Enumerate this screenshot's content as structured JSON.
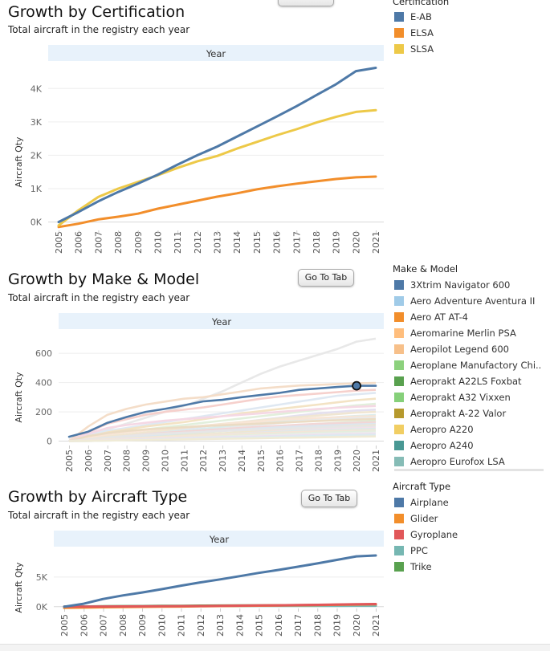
{
  "charts": [
    {
      "id": "cert",
      "title": "Growth by Certification",
      "subtitle": "Total aircraft in the registry each year",
      "button_label": "Go To Tab",
      "header": "Year",
      "ylabel": "Aircraft Qty",
      "legend_title": "Certification",
      "legend": [
        {
          "label": "E-AB",
          "color": "#4e79a7"
        },
        {
          "label": "ELSA",
          "color": "#f28e2b"
        },
        {
          "label": "SLSA",
          "color": "#edc948"
        }
      ],
      "chart_data": {
        "type": "line",
        "title": "Growth by Certification",
        "xlabel": "Year",
        "ylabel": "Aircraft Qty",
        "ylim": [
          -250,
          4800
        ],
        "yticks": [
          0,
          1000,
          2000,
          3000,
          4000
        ],
        "ytick_labels": [
          "0K",
          "1K",
          "2K",
          "3K",
          "4K"
        ],
        "x": [
          "2005",
          "2006",
          "2007",
          "2008",
          "2009",
          "2010",
          "2011",
          "2012",
          "2013",
          "2014",
          "2015",
          "2016",
          "2017",
          "2018",
          "2019",
          "2020",
          "2021"
        ],
        "series": [
          {
            "name": "ELSA",
            "color": "#f28e2b",
            "values": [
              -150,
              -50,
              80,
              160,
              250,
              400,
              520,
              640,
              760,
              860,
              980,
              1070,
              1150,
              1220,
              1290,
              1340,
              1360
            ]
          },
          {
            "name": "SLSA",
            "color": "#edc948",
            "values": [
              -100,
              350,
              750,
              1000,
              1200,
              1400,
              1620,
              1820,
              1980,
              2200,
              2400,
              2600,
              2780,
              2980,
              3150,
              3300,
              3350
            ]
          },
          {
            "name": "E-AB",
            "color": "#4e79a7",
            "values": [
              0,
              300,
              620,
              900,
              1150,
              1420,
              1720,
              2000,
              2260,
              2560,
              2860,
              3160,
              3470,
              3800,
              4130,
              4520,
              4620
            ]
          }
        ]
      }
    },
    {
      "id": "make",
      "title": "Growth by Make & Model",
      "subtitle": "Total aircraft in the registry each year",
      "button_label": "Go To Tab",
      "header": "Year",
      "ylabel": "Aircraft Qty",
      "legend_title": "Make & Model",
      "legend": [
        {
          "label": "3Xtrim Navigator 600",
          "color": "#4e79a7"
        },
        {
          "label": "Aero Adventure Aventura II",
          "color": "#a0cbe8"
        },
        {
          "label": "Aero AT AT-4",
          "color": "#f28e2b"
        },
        {
          "label": "Aeromarine Merlin PSA",
          "color": "#ffbe7d"
        },
        {
          "label": "Aeropilot Legend 600",
          "color": "#f7c08a"
        },
        {
          "label": "Aeroplane Manufactory Chi..",
          "color": "#8cd17d"
        },
        {
          "label": "Aeroprakt A22LS Foxbat",
          "color": "#59a14f"
        },
        {
          "label": "Aeroprakt A32 Vixxen",
          "color": "#86d07a"
        },
        {
          "label": "Aeroprakt A-22 Valor",
          "color": "#b6992d"
        },
        {
          "label": "Aeropro A220",
          "color": "#f1ce63"
        },
        {
          "label": "Aeropro A240",
          "color": "#499894"
        },
        {
          "label": "Aeropro Eurofox LSA",
          "color": "#86bcb6"
        }
      ],
      "chart_data": {
        "type": "line",
        "title": "Growth by Make & Model",
        "xlabel": "Year",
        "ylabel": "Aircraft Qty",
        "ylim": [
          -30,
          760
        ],
        "yticks": [
          0,
          200,
          400,
          600
        ],
        "ytick_labels": [
          "0",
          "200",
          "400",
          "600"
        ],
        "x": [
          "2005",
          "2006",
          "2007",
          "2008",
          "2009",
          "2010",
          "2011",
          "2012",
          "2013",
          "2014",
          "2015",
          "2016",
          "2017",
          "2018",
          "2019",
          "2020",
          "2021"
        ],
        "highlight_point": {
          "series": "3Xtrim Navigator 600",
          "x": "2020",
          "y": 378
        },
        "background_series": [
          {
            "color": "#e8e8e8",
            "values": [
              10,
              40,
              80,
              120,
              160,
              200,
              240,
              290,
              340,
              400,
              460,
              510,
              550,
              590,
              630,
              680,
              700
            ]
          },
          {
            "color": "#f4ddc8",
            "values": [
              0,
              100,
              180,
              220,
              250,
              270,
              290,
              300,
              320,
              340,
              360,
              370,
              380,
              385,
              390,
              395,
              398
            ]
          },
          {
            "color": "#f6d0cc",
            "values": [
              0,
              60,
              120,
              150,
              180,
              200,
              215,
              230,
              250,
              270,
              290,
              305,
              315,
              325,
              335,
              345,
              350
            ]
          },
          {
            "color": "#dfe8f2",
            "values": [
              0,
              40,
              70,
              90,
              110,
              130,
              150,
              170,
              190,
              210,
              230,
              250,
              270,
              290,
              310,
              320,
              330
            ]
          },
          {
            "color": "#f3e3c4",
            "values": [
              0,
              30,
              60,
              80,
              100,
              115,
              130,
              150,
              170,
              190,
              205,
              220,
              235,
              250,
              265,
              280,
              290
            ]
          },
          {
            "color": "#e2efdc",
            "values": [
              0,
              20,
              40,
              60,
              80,
              95,
              110,
              125,
              140,
              155,
              170,
              185,
              200,
              215,
              230,
              245,
              255
            ]
          },
          {
            "color": "#f5d8e4",
            "values": [
              0,
              50,
              90,
              110,
              125,
              140,
              150,
              160,
              170,
              180,
              190,
              200,
              210,
              220,
              228,
              235,
              240
            ]
          },
          {
            "color": "#e4e0ef",
            "values": [
              0,
              10,
              25,
              40,
              55,
              70,
              85,
              100,
              115,
              130,
              145,
              160,
              175,
              190,
              200,
              210,
              215
            ]
          },
          {
            "color": "#f0e6d2",
            "values": [
              0,
              15,
              30,
              45,
              60,
              75,
              90,
              105,
              118,
              130,
              142,
              155,
              165,
              175,
              185,
              195,
              200
            ]
          },
          {
            "color": "#d9ecec",
            "values": [
              0,
              5,
              15,
              30,
              45,
              60,
              72,
              85,
              97,
              110,
              122,
              135,
              145,
              155,
              165,
              172,
              178
            ]
          },
          {
            "color": "#f8e5d6",
            "values": [
              0,
              25,
              45,
              60,
              75,
              85,
              95,
              105,
              115,
              125,
              135,
              145,
              152,
              158,
              163,
              168,
              170
            ]
          },
          {
            "color": "#e9e9e9",
            "values": [
              0,
              0,
              5,
              15,
              25,
              40,
              55,
              70,
              85,
              100,
              112,
              124,
              135,
              145,
              152,
              158,
              160
            ]
          },
          {
            "color": "#ebdcc4",
            "values": [
              0,
              35,
              55,
              70,
              80,
              88,
              95,
              102,
              108,
              114,
              120,
              126,
              132,
              138,
              143,
              147,
              150
            ]
          },
          {
            "color": "#dcebd6",
            "values": [
              0,
              5,
              12,
              20,
              30,
              40,
              50,
              60,
              70,
              80,
              90,
              100,
              110,
              118,
              125,
              132,
              138
            ]
          },
          {
            "color": "#f2d6d6",
            "values": [
              0,
              10,
              20,
              35,
              48,
              58,
              66,
              74,
              82,
              90,
              98,
              105,
              112,
              118,
              122,
              126,
              128
            ]
          },
          {
            "color": "#dde6ee",
            "values": [
              0,
              8,
              18,
              28,
              38,
              48,
              56,
              64,
              72,
              80,
              88,
              95,
              100,
              105,
              110,
              114,
              118
            ]
          },
          {
            "color": "#efe7cf",
            "values": [
              0,
              3,
              8,
              15,
              22,
              30,
              38,
              46,
              54,
              62,
              70,
              78,
              85,
              92,
              98,
              103,
              108
            ]
          },
          {
            "color": "#e6e6e6",
            "values": [
              0,
              12,
              25,
              35,
              45,
              52,
              58,
              64,
              70,
              75,
              80,
              85,
              89,
              93,
              96,
              99,
              100
            ]
          },
          {
            "color": "#f2e0ea",
            "values": [
              0,
              2,
              6,
              12,
              18,
              25,
              32,
              39,
              46,
              53,
              60,
              67,
              73,
              79,
              84,
              88,
              92
            ]
          },
          {
            "color": "#d8ecea",
            "values": [
              0,
              4,
              10,
              16,
              22,
              28,
              34,
              40,
              46,
              52,
              58,
              63,
              68,
              72,
              76,
              80,
              83
            ]
          },
          {
            "color": "#f3e6d8",
            "values": [
              0,
              6,
              12,
              18,
              24,
              30,
              35,
              40,
              45,
              50,
              55,
              59,
              63,
              67,
              70,
              73,
              75
            ]
          },
          {
            "color": "#e4eedf",
            "values": [
              0,
              1,
              4,
              8,
              13,
              18,
              23,
              28,
              33,
              38,
              43,
              48,
              53,
              57,
              61,
              64,
              67
            ]
          },
          {
            "color": "#ececec",
            "values": [
              0,
              2,
              5,
              9,
              13,
              17,
              21,
              25,
              29,
              33,
              37,
              41,
              45,
              49,
              52,
              55,
              58
            ]
          },
          {
            "color": "#ebe1f0",
            "values": [
              0,
              3,
              6,
              10,
              14,
              18,
              21,
              24,
              27,
              30,
              33,
              36,
              39,
              42,
              45,
              47,
              49
            ]
          },
          {
            "color": "#dcebf0",
            "values": [
              0,
              1,
              3,
              6,
              9,
              12,
              15,
              18,
              21,
              24,
              27,
              30,
              33,
              36,
              38,
              40,
              42
            ]
          },
          {
            "color": "#f0ebd6",
            "values": [
              0,
              2,
              4,
              6,
              8,
              10,
              12,
              14,
              16,
              18,
              20,
              22,
              24,
              26,
              28,
              30,
              32
            ]
          }
        ],
        "series": [
          {
            "name": "3Xtrim Navigator 600",
            "color": "#4e79a7",
            "values": [
              30,
              65,
              125,
              165,
              200,
              220,
              245,
              272,
              282,
              300,
              315,
              330,
              350,
              360,
              370,
              378,
              378
            ]
          }
        ]
      }
    },
    {
      "id": "type",
      "title": "Growth by Aircraft Type",
      "subtitle": "Total aircraft in the registry each year",
      "button_label": "Go To Tab",
      "header": "Year",
      "ylabel": "Aircraft Qty",
      "legend_title": "Aircraft Type",
      "legend": [
        {
          "label": "Airplane",
          "color": "#4e79a7"
        },
        {
          "label": "Glider",
          "color": "#f28e2b"
        },
        {
          "label": "Gyroplane",
          "color": "#e15759"
        },
        {
          "label": "PPC",
          "color": "#76b7b2"
        },
        {
          "label": "Trike",
          "color": "#59a14f"
        }
      ],
      "chart_data": {
        "type": "line",
        "title": "Growth by Aircraft Type",
        "xlabel": "Year",
        "ylabel": "Aircraft Qty",
        "ylim": [
          -300,
          10000
        ],
        "yticks": [
          0,
          5000
        ],
        "ytick_labels": [
          "0K",
          "5K"
        ],
        "x": [
          "2005",
          "2006",
          "2007",
          "2008",
          "2009",
          "2010",
          "2011",
          "2012",
          "2013",
          "2014",
          "2015",
          "2016",
          "2017",
          "2018",
          "2019",
          "2020",
          "2021"
        ],
        "series": [
          {
            "name": "Trike",
            "color": "#59a14f",
            "values": [
              0,
              30,
              60,
              90,
              110,
              130,
              150,
              170,
              185,
              200,
              215,
              230,
              245,
              255,
              265,
              275,
              280
            ]
          },
          {
            "name": "PPC",
            "color": "#76b7b2",
            "values": [
              0,
              20,
              40,
              55,
              70,
              80,
              90,
              100,
              110,
              120,
              128,
              135,
              142,
              148,
              152,
              156,
              160
            ]
          },
          {
            "name": "Glider",
            "color": "#f28e2b",
            "values": [
              -200,
              -150,
              -100,
              -60,
              -30,
              0,
              30,
              60,
              100,
              140,
              170,
              200,
              240,
              280,
              330,
              370,
              400
            ]
          },
          {
            "name": "Gyroplane",
            "color": "#e15759",
            "values": [
              0,
              10,
              20,
              35,
              50,
              70,
              90,
              110,
              140,
              170,
              200,
              230,
              270,
              310,
              360,
              420,
              450
            ]
          },
          {
            "name": "Airplane",
            "color": "#4e79a7",
            "values": [
              0,
              500,
              1300,
              1900,
              2400,
              2950,
              3550,
              4100,
              4600,
              5150,
              5700,
              6200,
              6750,
              7300,
              7900,
              8500,
              8650
            ]
          }
        ]
      }
    }
  ]
}
